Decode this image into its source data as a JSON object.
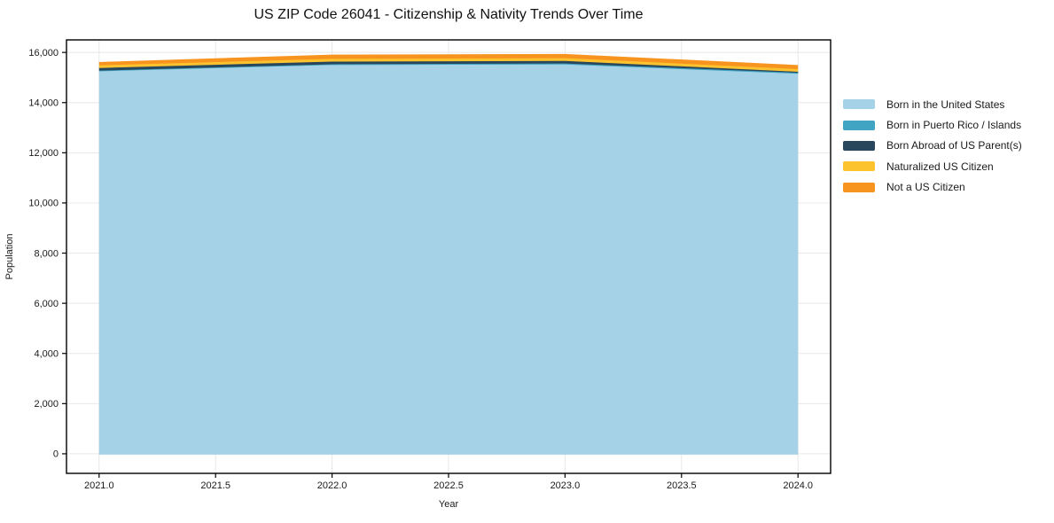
{
  "title": "US ZIP Code 26041 - Citizenship & Nativity Trends Over Time",
  "chart_data": {
    "type": "area",
    "stacked": true,
    "title": "US ZIP Code 26041 - Citizenship & Nativity Trends Over Time",
    "xlabel": "Year",
    "ylabel": "Population",
    "x": [
      2021,
      2022,
      2023,
      2024
    ],
    "series": [
      {
        "name": "Born in the United States",
        "color": "#A6D2E8",
        "values": [
          15260,
          15500,
          15520,
          15150
        ]
      },
      {
        "name": "Born in Puerto Rico / Islands",
        "color": "#41A4C2",
        "values": [
          15,
          30,
          40,
          40
        ]
      },
      {
        "name": "Born Abroad of US Parent(s)",
        "color": "#28475C",
        "values": [
          105,
          105,
          100,
          40
        ]
      },
      {
        "name": "Naturalized US Citizen",
        "color": "#FDC32F",
        "values": [
          105,
          110,
          110,
          105
        ]
      },
      {
        "name": "Not a US Citizen",
        "color": "#F7941F",
        "values": [
          105,
          140,
          140,
          135
        ]
      }
    ],
    "xlim": [
      2020.86,
      2024.14
    ],
    "ylim": [
      -780,
      16500
    ],
    "xticks": [
      2021.0,
      2021.5,
      2022.0,
      2022.5,
      2023.0,
      2023.5,
      2024.0
    ],
    "yticks": [
      0,
      2000,
      4000,
      6000,
      8000,
      10000,
      12000,
      14000,
      16000
    ],
    "grid": true,
    "legend_position": "right",
    "colors": {
      "gridline": "#e8e8e8",
      "frame": "#000000",
      "text": "#1a1a1a",
      "background": "#ffffff"
    }
  }
}
